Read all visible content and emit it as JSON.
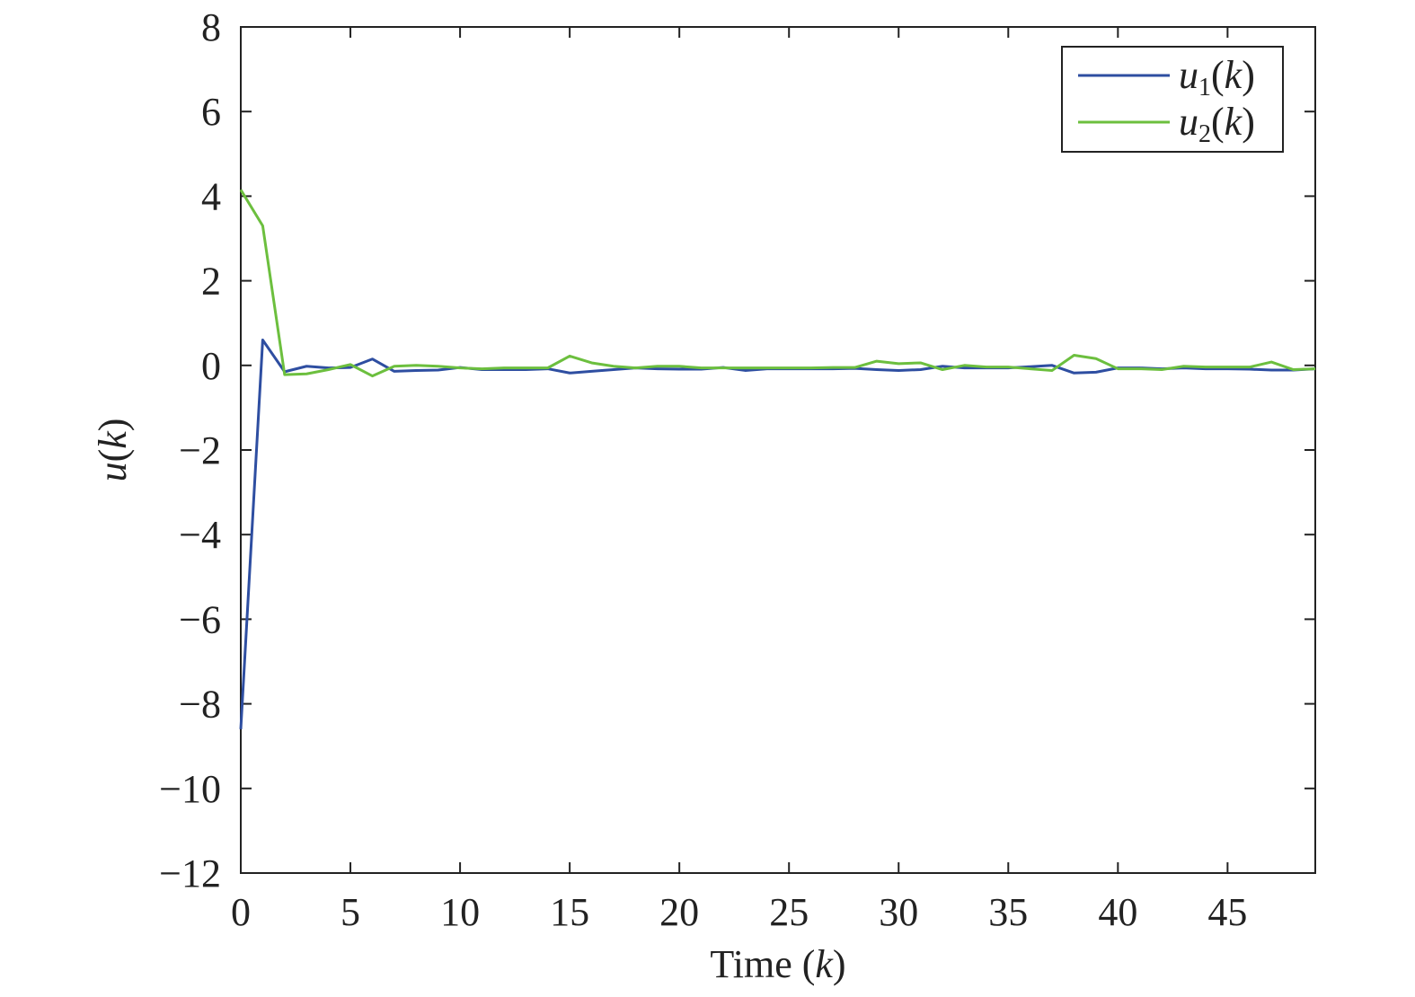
{
  "chart_data": {
    "type": "line",
    "xlabel": "Time (k)",
    "ylabel": "u(k)",
    "xlim": [
      0,
      49
    ],
    "ylim": [
      -12,
      8
    ],
    "x_ticks": [
      0,
      5,
      10,
      15,
      20,
      25,
      30,
      35,
      40,
      45
    ],
    "y_ticks": [
      -12,
      -10,
      -8,
      -6,
      -4,
      -2,
      0,
      2,
      4,
      6,
      8
    ],
    "x_tick_labels": [
      "0",
      "5",
      "10",
      "15",
      "20",
      "25",
      "30",
      "35",
      "40",
      "45"
    ],
    "y_tick_labels": [
      "−12",
      "−10",
      "−8",
      "−6",
      "−4",
      "−2",
      "0",
      "2",
      "4",
      "6",
      "8"
    ],
    "grid": false,
    "legend_position": "top-right",
    "x": [
      0,
      1,
      2,
      3,
      4,
      5,
      6,
      7,
      8,
      9,
      10,
      11,
      12,
      13,
      14,
      15,
      16,
      17,
      18,
      19,
      20,
      21,
      22,
      23,
      24,
      25,
      26,
      27,
      28,
      29,
      30,
      31,
      32,
      33,
      34,
      35,
      36,
      37,
      38,
      39,
      40,
      41,
      42,
      43,
      44,
      45,
      46,
      47,
      48,
      49
    ],
    "series": [
      {
        "name": "u1(k)",
        "name_parts": {
          "base": "u",
          "sub": "1",
          "arg": "(k)"
        },
        "color": "#2e4ea1",
        "values": [
          -8.6,
          0.6,
          -0.15,
          -0.02,
          -0.06,
          -0.05,
          0.15,
          -0.14,
          -0.12,
          -0.11,
          -0.05,
          -0.1,
          -0.1,
          -0.1,
          -0.08,
          -0.18,
          -0.14,
          -0.1,
          -0.06,
          -0.08,
          -0.09,
          -0.09,
          -0.05,
          -0.12,
          -0.08,
          -0.08,
          -0.08,
          -0.08,
          -0.07,
          -0.1,
          -0.12,
          -0.1,
          -0.02,
          -0.06,
          -0.06,
          -0.06,
          -0.03,
          0.0,
          -0.18,
          -0.16,
          -0.06,
          -0.06,
          -0.08,
          -0.06,
          -0.08,
          -0.08,
          -0.09,
          -0.11,
          -0.11,
          -0.08
        ]
      },
      {
        "name": "u2(k)",
        "name_parts": {
          "base": "u",
          "sub": "2",
          "arg": "(k)"
        },
        "color": "#6cbf3e",
        "values": [
          4.15,
          3.3,
          -0.22,
          -0.2,
          -0.1,
          0.02,
          -0.25,
          -0.02,
          0.0,
          -0.02,
          -0.06,
          -0.08,
          -0.06,
          -0.06,
          -0.06,
          0.22,
          0.06,
          -0.02,
          -0.06,
          -0.02,
          -0.02,
          -0.06,
          -0.06,
          -0.06,
          -0.06,
          -0.06,
          -0.06,
          -0.05,
          -0.05,
          0.1,
          0.04,
          0.06,
          -0.1,
          0.0,
          -0.04,
          -0.04,
          -0.08,
          -0.12,
          0.24,
          0.16,
          -0.08,
          -0.08,
          -0.1,
          -0.02,
          -0.04,
          -0.04,
          -0.04,
          0.08,
          -0.1,
          -0.08
        ]
      }
    ]
  }
}
